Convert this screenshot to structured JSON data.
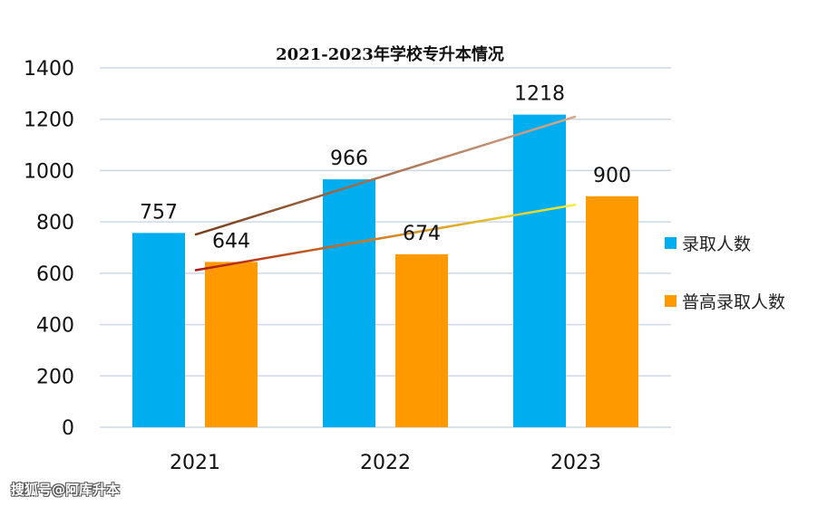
{
  "chart_data": {
    "type": "bar",
    "title": "2021-2023年学校专升本情况",
    "categories": [
      "2021",
      "2022",
      "2023"
    ],
    "series": [
      {
        "name": "录取人数",
        "values": [
          757,
          966,
          1218
        ],
        "color": "#00aeef"
      },
      {
        "name": "普高录取人数",
        "values": [
          644,
          674,
          900
        ],
        "color": "#ff9900"
      }
    ],
    "y_ticks": [
      "0",
      "200",
      "400",
      "600",
      "800",
      "1000",
      "1200",
      "1400"
    ],
    "ylim": [
      0,
      1400
    ],
    "grid": true,
    "legend_position": "right",
    "trendlines": [
      {
        "series": "录取人数",
        "colors": [
          "#7a3e1a",
          "#d8a98c"
        ]
      },
      {
        "series": "普高录取人数",
        "colors": [
          "#b01818",
          "#f5ef30"
        ]
      }
    ]
  },
  "watermark": "搜狐号@阿库升本"
}
